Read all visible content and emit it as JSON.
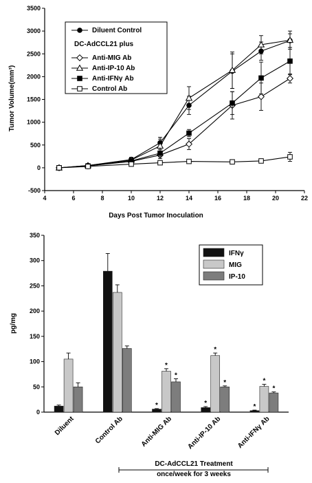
{
  "chart_data": [
    {
      "type": "line",
      "title": "",
      "xlabel": "Days Post Tumor Inoculation",
      "ylabel": "Tumor Volume(mm³)",
      "xlim": [
        4,
        22
      ],
      "ylim": [
        -500,
        3500
      ],
      "xticks": [
        4,
        6,
        8,
        10,
        12,
        14,
        16,
        18,
        20,
        22
      ],
      "yticks": [
        -500,
        0,
        500,
        1000,
        1500,
        2000,
        2500,
        3000,
        3500
      ],
      "legend_header": "DC-AdCCL21 plus",
      "legend_position": "top-left",
      "x": [
        5,
        7,
        10,
        12,
        14,
        17,
        19,
        21
      ],
      "series": [
        {
          "name": "Diluent Control",
          "marker": "filled-circle",
          "values": [
            0,
            50,
            180,
            550,
            1370,
            2120,
            2560,
            2790
          ],
          "errors": [
            0,
            30,
            50,
            120,
            200,
            380,
            200,
            150
          ]
        },
        {
          "name": "Anti-MIG Ab",
          "marker": "open-diamond",
          "values": [
            0,
            40,
            140,
            280,
            520,
            1370,
            1560,
            1960
          ],
          "errors": [
            0,
            20,
            40,
            80,
            120,
            300,
            300,
            100
          ]
        },
        {
          "name": "Anti-IP-10 Ab",
          "marker": "open-triangle",
          "values": [
            0,
            50,
            170,
            480,
            1530,
            2140,
            2700,
            2800
          ],
          "errors": [
            0,
            30,
            50,
            150,
            250,
            400,
            200,
            200
          ]
        },
        {
          "name": "Anti-IFNγ Ab",
          "marker": "filled-square",
          "values": [
            0,
            40,
            150,
            320,
            760,
            1420,
            1970,
            2340
          ],
          "errors": [
            0,
            20,
            40,
            80,
            80,
            250,
            350,
            300
          ]
        },
        {
          "name": "Control Ab",
          "marker": "open-square",
          "values": [
            0,
            30,
            80,
            110,
            140,
            130,
            150,
            240
          ],
          "errors": [
            0,
            15,
            30,
            30,
            20,
            20,
            20,
            100
          ]
        }
      ]
    },
    {
      "type": "bar",
      "title": "",
      "xlabel": "",
      "ylabel": "pg/mg",
      "ylim": [
        0,
        350
      ],
      "yticks": [
        0,
        50,
        100,
        150,
        200,
        250,
        300,
        350
      ],
      "legend_position": "top-right",
      "categories": [
        "Diluent",
        "Control Ab",
        "Anti-MIG Ab",
        "Anti-IP-10 Ab",
        "Anti-IFNγ Ab"
      ],
      "series": [
        {
          "name": "IFNγ",
          "color": "#111111",
          "values": [
            12,
            279,
            6,
            9,
            3
          ],
          "errors": [
            2,
            35,
            1,
            2,
            1
          ],
          "significant": [
            false,
            false,
            true,
            true,
            true
          ]
        },
        {
          "name": "MIG",
          "color": "#c8c8c8",
          "values": [
            105,
            237,
            81,
            112,
            51
          ],
          "errors": [
            12,
            15,
            5,
            5,
            4
          ],
          "significant": [
            false,
            false,
            true,
            true,
            true
          ]
        },
        {
          "name": "IP-10",
          "color": "#7d7d7d",
          "values": [
            50,
            126,
            60,
            50,
            38
          ],
          "errors": [
            8,
            5,
            6,
            2,
            2
          ],
          "significant": [
            false,
            false,
            true,
            true,
            true
          ]
        }
      ],
      "significance_symbol": "*",
      "bracket_label_1": "DC-AdCCL21 Treatment",
      "bracket_label_2": "once/week for 3 weeks"
    }
  ]
}
